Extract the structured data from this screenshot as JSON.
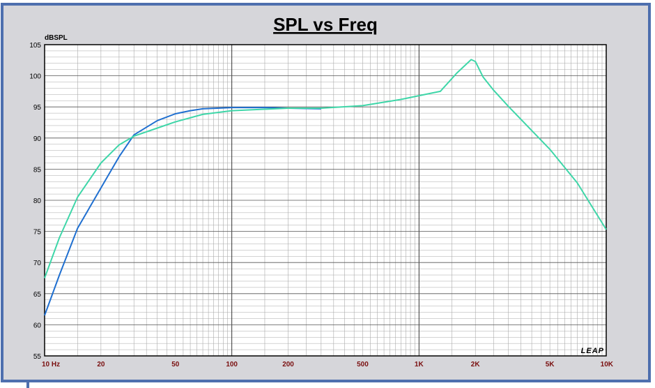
{
  "chart_data": {
    "type": "line",
    "title": "SPL vs Freq",
    "ylabel": "dBSPL",
    "xlabel": "",
    "x_scale": "log",
    "xlim": [
      10,
      10000
    ],
    "ylim": [
      55,
      105
    ],
    "y_ticks": [
      55,
      60,
      65,
      70,
      75,
      80,
      85,
      90,
      95,
      100,
      105
    ],
    "x_ticks": [
      {
        "value": 10,
        "label": "10  Hz"
      },
      {
        "value": 20,
        "label": "20"
      },
      {
        "value": 50,
        "label": "50"
      },
      {
        "value": 100,
        "label": "100"
      },
      {
        "value": 200,
        "label": "200"
      },
      {
        "value": 500,
        "label": "500"
      },
      {
        "value": 1000,
        "label": "1K"
      },
      {
        "value": 2000,
        "label": "2K"
      },
      {
        "value": 5000,
        "label": "5K"
      },
      {
        "value": 10000,
        "label": "10K"
      }
    ],
    "grid": true,
    "watermark": "LEAP",
    "series": [
      {
        "color": "#1f6fd0",
        "x": [
          10,
          12,
          15,
          20,
          25,
          30,
          40,
          50,
          60,
          70,
          100,
          150,
          200,
          300
        ],
        "y": [
          61.5,
          68,
          75.5,
          82,
          87,
          90.5,
          92.8,
          93.9,
          94.4,
          94.7,
          94.9,
          94.9,
          94.8,
          94.7
        ]
      },
      {
        "color": "#3ed6a8",
        "x": [
          10,
          12,
          15,
          20,
          25,
          30,
          40,
          50,
          70,
          100,
          200,
          300,
          500,
          800,
          1000,
          1300,
          1600,
          1900,
          2000,
          2200,
          2500,
          3000,
          4000,
          5000,
          7000,
          10000
        ],
        "y": [
          67.5,
          74,
          80.5,
          86,
          88.9,
          90.3,
          91.6,
          92.6,
          93.8,
          94.4,
          94.8,
          94.8,
          95.2,
          96.2,
          96.8,
          97.5,
          100.5,
          102.6,
          102.3,
          99.8,
          97.7,
          95.1,
          91.2,
          88.2,
          82.8,
          75.3
        ]
      }
    ]
  }
}
